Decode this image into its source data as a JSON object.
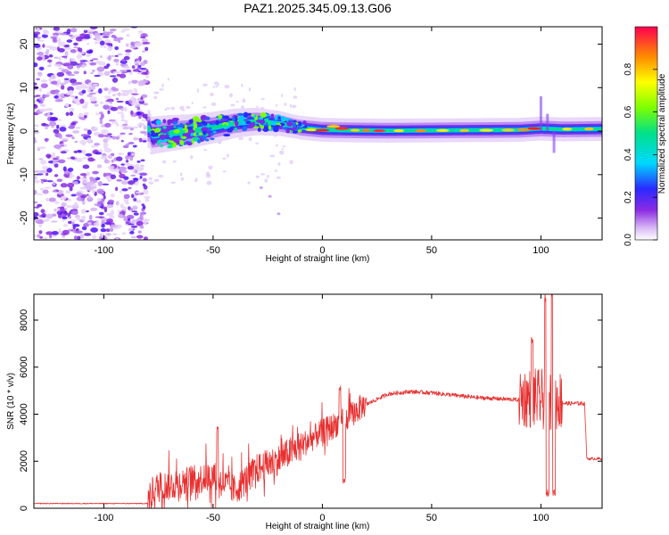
{
  "title": "PAZ1.2025.345.09.13.G06",
  "chart_data": [
    {
      "type": "heatmap",
      "name": "spectrogram",
      "xlabel": "Height of straight line (km)",
      "ylabel": "Frequency (Hz)",
      "xlim": [
        -132,
        128
      ],
      "ylim": [
        -25,
        24
      ],
      "xticks": [
        -100,
        -50,
        0,
        50,
        100
      ],
      "yticks": [
        -20,
        -10,
        0,
        10,
        20
      ],
      "noise_region_x": [
        -132,
        -80
      ],
      "signal_ridge": [
        {
          "x": -78,
          "f": -1.0
        },
        {
          "x": -70,
          "f": -0.5
        },
        {
          "x": -60,
          "f": 0.0
        },
        {
          "x": -50,
          "f": 0.8
        },
        {
          "x": -40,
          "f": 1.8
        },
        {
          "x": -30,
          "f": 2.2
        },
        {
          "x": -20,
          "f": 1.8
        },
        {
          "x": -10,
          "f": 0.8
        },
        {
          "x": 0,
          "f": 0.3
        },
        {
          "x": 10,
          "f": 0.2
        },
        {
          "x": 30,
          "f": 0.1
        },
        {
          "x": 60,
          "f": 0.2
        },
        {
          "x": 90,
          "f": 0.3
        },
        {
          "x": 100,
          "f": 0.6
        },
        {
          "x": 110,
          "f": 0.4
        },
        {
          "x": 128,
          "f": 0.5
        }
      ],
      "colorbar": {
        "label": "Normalized spectral amplitude",
        "range": [
          0,
          1
        ],
        "ticks": [
          "0.0",
          "0.2",
          "0.4",
          "0.6",
          "0.8"
        ],
        "tick_values": [
          0.0,
          0.2,
          0.4,
          0.6,
          0.8
        ]
      }
    },
    {
      "type": "line",
      "name": "snr",
      "xlabel": "Height of straight line (km)",
      "ylabel": "SNR (10 * v/v)",
      "xlim": [
        -132,
        128
      ],
      "ylim": [
        0,
        9100
      ],
      "xticks": [
        -100,
        -50,
        0,
        50,
        100
      ],
      "yticks": [
        0,
        2000,
        4000,
        6000,
        8000
      ],
      "color": "#e83030",
      "envelope": [
        {
          "x": -132,
          "v": 200
        },
        {
          "x": -80,
          "v": 200
        },
        {
          "x": -76,
          "v": 800
        },
        {
          "x": -60,
          "v": 1100
        },
        {
          "x": -50,
          "v": 1300
        },
        {
          "x": -40,
          "v": 700
        },
        {
          "x": -30,
          "v": 1600
        },
        {
          "x": -20,
          "v": 2000
        },
        {
          "x": -10,
          "v": 2600
        },
        {
          "x": 0,
          "v": 3200
        },
        {
          "x": 10,
          "v": 3700
        },
        {
          "x": 20,
          "v": 4400
        },
        {
          "x": 30,
          "v": 4850
        },
        {
          "x": 40,
          "v": 4950
        },
        {
          "x": 50,
          "v": 4900
        },
        {
          "x": 60,
          "v": 4800
        },
        {
          "x": 70,
          "v": 4700
        },
        {
          "x": 80,
          "v": 4650
        },
        {
          "x": 90,
          "v": 4600
        },
        {
          "x": 100,
          "v": 4500
        },
        {
          "x": 110,
          "v": 4450
        },
        {
          "x": 120,
          "v": 4450
        },
        {
          "x": 121,
          "v": 2100
        },
        {
          "x": 128,
          "v": 2100
        }
      ],
      "dips": [
        {
          "x": 10,
          "v": 1000
        },
        {
          "x": 103,
          "v": 500
        },
        {
          "x": 106,
          "v": 500
        }
      ],
      "spikes": [
        {
          "x": -48,
          "v": 3500
        },
        {
          "x": 8,
          "v": 5300
        },
        {
          "x": 96,
          "v": 7300
        },
        {
          "x": 102,
          "v": 9100
        },
        {
          "x": 105,
          "v": 9100
        }
      ]
    }
  ]
}
